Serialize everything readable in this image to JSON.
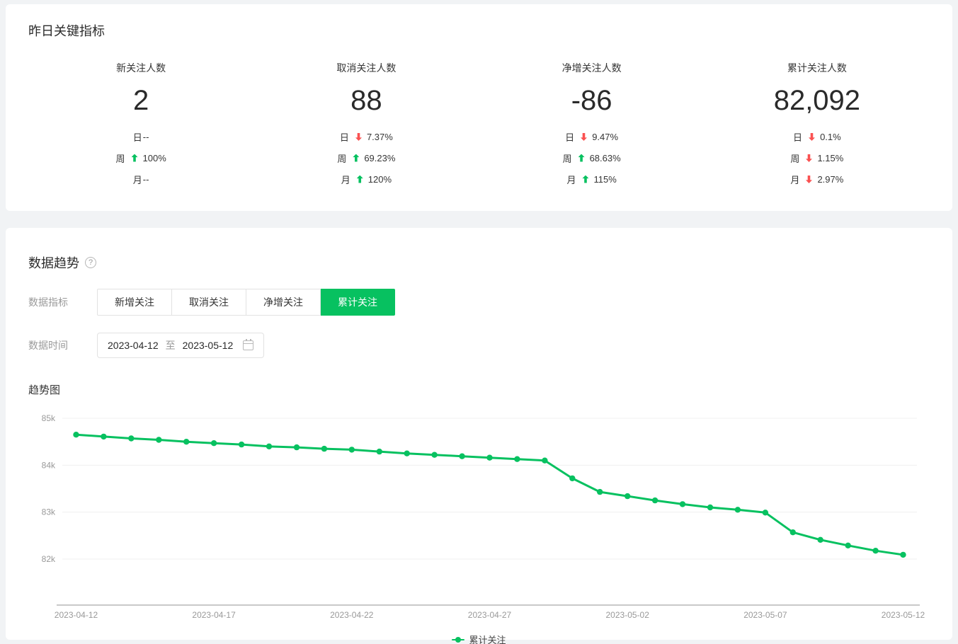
{
  "colors": {
    "green": "#07C160",
    "red": "#FA5151",
    "grid": "#f0f0f0",
    "axis": "#c9c9c9",
    "tick_text": "#999999"
  },
  "panel_metrics": {
    "title": "昨日关键指标",
    "cards": [
      {
        "label": "新关注人数",
        "value": "2",
        "rows": [
          {
            "period": "日",
            "trend": "none",
            "value": "--"
          },
          {
            "period": "周",
            "trend": "up",
            "value": "100%"
          },
          {
            "period": "月",
            "trend": "none",
            "value": "--"
          }
        ]
      },
      {
        "label": "取消关注人数",
        "value": "88",
        "rows": [
          {
            "period": "日",
            "trend": "down",
            "value": "7.37%"
          },
          {
            "period": "周",
            "trend": "up",
            "value": "69.23%"
          },
          {
            "period": "月",
            "trend": "up",
            "value": "120%"
          }
        ]
      },
      {
        "label": "净增关注人数",
        "value": "-86",
        "rows": [
          {
            "period": "日",
            "trend": "down",
            "value": "9.47%"
          },
          {
            "period": "周",
            "trend": "up",
            "value": "68.63%"
          },
          {
            "period": "月",
            "trend": "up",
            "value": "115%"
          }
        ]
      },
      {
        "label": "累计关注人数",
        "value": "82,092",
        "rows": [
          {
            "period": "日",
            "trend": "down",
            "value": "0.1%"
          },
          {
            "period": "周",
            "trend": "down",
            "value": "1.15%"
          },
          {
            "period": "月",
            "trend": "down",
            "value": "2.97%"
          }
        ]
      }
    ]
  },
  "panel_trend": {
    "title": "数据趋势",
    "metric_label": "数据指标",
    "tabs": [
      {
        "label": "新增关注",
        "active": false
      },
      {
        "label": "取消关注",
        "active": false
      },
      {
        "label": "净增关注",
        "active": false
      },
      {
        "label": "累计关注",
        "active": true
      }
    ],
    "time_label": "数据时间",
    "date_start": "2023-04-12",
    "date_separator": "至",
    "date_end": "2023-05-12",
    "chart_title": "趋势图",
    "legend": "累计关注"
  },
  "chart_data": {
    "type": "line",
    "title": "趋势图",
    "legend_entries": [
      "累计关注"
    ],
    "legend_position": "bottom",
    "grid": true,
    "xlabel": "",
    "ylabel": "",
    "ylim": [
      81000,
      85500
    ],
    "yticks": [
      {
        "label": "85k",
        "value": 85000
      },
      {
        "label": "84k",
        "value": 84000
      },
      {
        "label": "83k",
        "value": 83000
      },
      {
        "label": "82k",
        "value": 82000
      }
    ],
    "x_axis_labels": [
      "2023-04-12",
      "2023-04-17",
      "2023-04-22",
      "2023-04-27",
      "2023-05-02",
      "2023-05-07",
      "2023-05-12"
    ],
    "x": [
      "2023-04-12",
      "2023-04-13",
      "2023-04-14",
      "2023-04-15",
      "2023-04-16",
      "2023-04-17",
      "2023-04-18",
      "2023-04-19",
      "2023-04-20",
      "2023-04-21",
      "2023-04-22",
      "2023-04-23",
      "2023-04-24",
      "2023-04-25",
      "2023-04-26",
      "2023-04-27",
      "2023-04-28",
      "2023-04-29",
      "2023-04-30",
      "2023-05-01",
      "2023-05-02",
      "2023-05-03",
      "2023-05-04",
      "2023-05-05",
      "2023-05-06",
      "2023-05-07",
      "2023-05-08",
      "2023-05-09",
      "2023-05-10",
      "2023-05-11",
      "2023-05-12"
    ],
    "series": [
      {
        "name": "累计关注",
        "values": [
          84650,
          84610,
          84570,
          84540,
          84500,
          84470,
          84440,
          84400,
          84380,
          84350,
          84330,
          84290,
          84250,
          84220,
          84190,
          84160,
          84130,
          84100,
          83720,
          83430,
          83340,
          83250,
          83170,
          83100,
          83050,
          82990,
          82570,
          82410,
          82290,
          82178,
          82092
        ]
      }
    ]
  }
}
